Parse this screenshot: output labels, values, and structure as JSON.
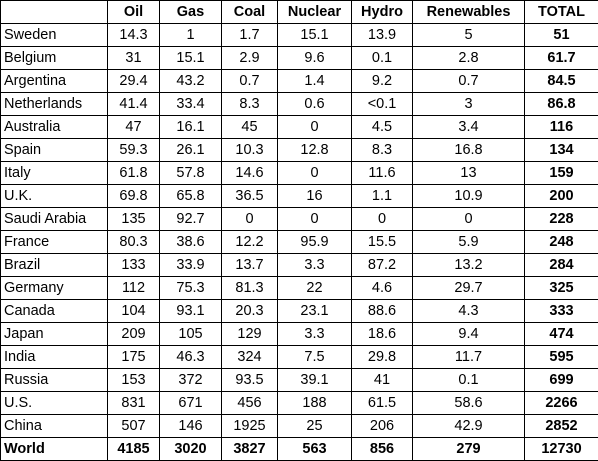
{
  "headers": [
    "",
    "Oil",
    "Gas",
    "Coal",
    "Nuclear",
    "Hydro",
    "Renewables",
    "TOTAL"
  ],
  "rows": [
    [
      "Sweden",
      "14.3",
      "1",
      "1.7",
      "15.1",
      "13.9",
      "5",
      "51"
    ],
    [
      "Belgium",
      "31",
      "15.1",
      "2.9",
      "9.6",
      "0.1",
      "2.8",
      "61.7"
    ],
    [
      "Argentina",
      "29.4",
      "43.2",
      "0.7",
      "1.4",
      "9.2",
      "0.7",
      "84.5"
    ],
    [
      "Netherlands",
      "41.4",
      "33.4",
      "8.3",
      "0.6",
      "<0.1",
      "3",
      "86.8"
    ],
    [
      "Australia",
      "47",
      "16.1",
      "45",
      "0",
      "4.5",
      "3.4",
      "116"
    ],
    [
      "Spain",
      "59.3",
      "26.1",
      "10.3",
      "12.8",
      "8.3",
      "16.8",
      "134"
    ],
    [
      "Italy",
      "61.8",
      "57.8",
      "14.6",
      "0",
      "11.6",
      "13",
      "159"
    ],
    [
      "U.K.",
      "69.8",
      "65.8",
      "36.5",
      "16",
      "1.1",
      "10.9",
      "200"
    ],
    [
      "Saudi Arabia",
      "135",
      "92.7",
      "0",
      "0",
      "0",
      "0",
      "228"
    ],
    [
      "France",
      "80.3",
      "38.6",
      "12.2",
      "95.9",
      "15.5",
      "5.9",
      "248"
    ],
    [
      "Brazil",
      "133",
      "33.9",
      "13.7",
      "3.3",
      "87.2",
      "13.2",
      "284"
    ],
    [
      "Germany",
      "112",
      "75.3",
      "81.3",
      "22",
      "4.6",
      "29.7",
      "325"
    ],
    [
      "Canada",
      "104",
      "93.1",
      "20.3",
      "23.1",
      "88.6",
      "4.3",
      "333"
    ],
    [
      "Japan",
      "209",
      "105",
      "129",
      "3.3",
      "18.6",
      "9.4",
      "474"
    ],
    [
      "India",
      "175",
      "46.3",
      "324",
      "7.5",
      "29.8",
      "11.7",
      "595"
    ],
    [
      "Russia",
      "153",
      "372",
      "93.5",
      "39.1",
      "41",
      "0.1",
      "699"
    ],
    [
      "U.S.",
      "831",
      "671",
      "456",
      "188",
      "61.5",
      "58.6",
      "2266"
    ],
    [
      "China",
      "507",
      "146",
      "1925",
      "25",
      "206",
      "42.9",
      "2852"
    ]
  ],
  "world": [
    "World",
    "4185",
    "3020",
    "3827",
    "563",
    "856",
    "279",
    "12730"
  ]
}
